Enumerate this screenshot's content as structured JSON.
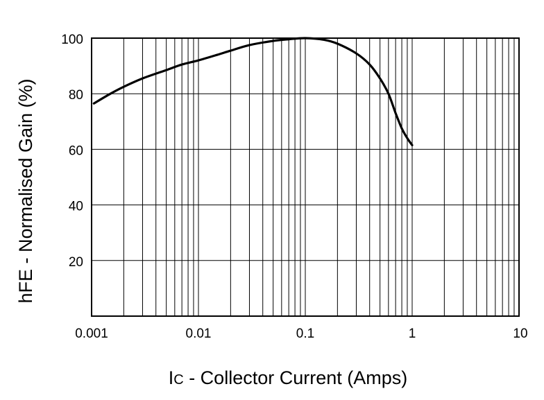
{
  "chart_data": {
    "type": "line",
    "title": "",
    "xlabel_main": "I",
    "xlabel_sub": "C",
    "xlabel_rest": " - Collector Current (Amps)",
    "ylabel": "hFE - Normalised Gain (%)",
    "x_scale": "log",
    "xlim": [
      0.001,
      10
    ],
    "ylim": [
      0,
      100
    ],
    "grid": true,
    "x_ticks": [
      {
        "value": 0.001,
        "label": "0.001"
      },
      {
        "value": 0.01,
        "label": "0.01"
      },
      {
        "value": 0.1,
        "label": "0.1"
      },
      {
        "value": 1,
        "label": "1"
      },
      {
        "value": 10,
        "label": "10"
      }
    ],
    "y_ticks": [
      {
        "value": 20,
        "label": "20"
      },
      {
        "value": 40,
        "label": "40"
      },
      {
        "value": 60,
        "label": "60"
      },
      {
        "value": 80,
        "label": "80"
      },
      {
        "value": 100,
        "label": "100"
      }
    ],
    "series": [
      {
        "x": [
          0.00105,
          0.0015,
          0.002,
          0.003,
          0.005,
          0.007,
          0.01,
          0.015,
          0.02,
          0.03,
          0.05,
          0.07,
          0.1,
          0.15,
          0.2,
          0.3,
          0.4,
          0.5,
          0.6,
          0.7,
          0.8,
          0.9,
          1.0
        ],
        "y": [
          76.5,
          80,
          82.5,
          85.5,
          88.5,
          90.5,
          92,
          94,
          95.5,
          97.5,
          99,
          99.6,
          100,
          99.4,
          98,
          94.5,
          90.5,
          85.5,
          80,
          73,
          67.5,
          64,
          61.5
        ]
      }
    ]
  }
}
